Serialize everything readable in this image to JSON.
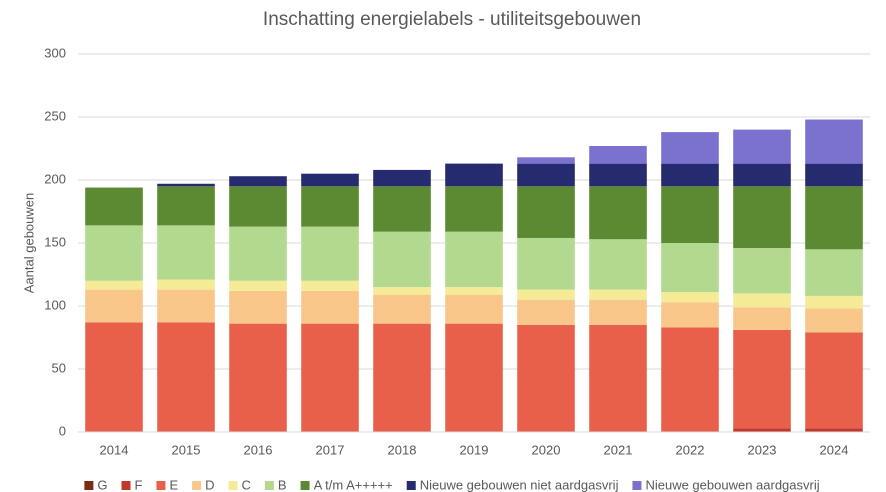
{
  "chart_data": {
    "type": "stacked_bar",
    "title": "Inschatting energielabels - utiliteitsgebouwen",
    "y_label": "Aantal gebouwen",
    "categories": [
      "2014",
      "2015",
      "2016",
      "2017",
      "2018",
      "2019",
      "2020",
      "2021",
      "2022",
      "2023",
      "2024"
    ],
    "series": [
      {
        "name": "G",
        "color": "#7b2a16",
        "values": [
          0,
          0,
          0,
          0,
          0,
          0,
          0,
          0,
          0,
          0,
          0
        ]
      },
      {
        "name": "F",
        "color": "#c0392b",
        "values": [
          0,
          0,
          0,
          0,
          0,
          0,
          0,
          0,
          0,
          3,
          3
        ]
      },
      {
        "name": "E",
        "color": "#e8604a",
        "values": [
          87,
          87,
          86,
          86,
          86,
          86,
          85,
          85,
          83,
          78,
          76
        ]
      },
      {
        "name": "D",
        "color": "#f9c78a",
        "values": [
          26,
          26,
          26,
          26,
          23,
          23,
          20,
          20,
          20,
          18,
          19
        ]
      },
      {
        "name": "C",
        "color": "#f5eb97",
        "values": [
          7,
          8,
          8,
          8,
          6,
          6,
          8,
          8,
          8,
          11,
          10
        ]
      },
      {
        "name": "B",
        "color": "#b3d98e",
        "values": [
          44,
          43,
          43,
          43,
          44,
          44,
          41,
          40,
          39,
          36,
          37
        ]
      },
      {
        "name": "A t/m A+++++",
        "color": "#5b8a32",
        "values": [
          30,
          31,
          32,
          32,
          36,
          36,
          41,
          42,
          45,
          49,
          50
        ]
      },
      {
        "name": "Nieuwe gebouwen niet aardgasvrij",
        "color": "#262a6e",
        "values": [
          0,
          2,
          8,
          10,
          13,
          18,
          18,
          18,
          18,
          18,
          18
        ]
      },
      {
        "name": "Nieuwe gebouwen aardgasvrij",
        "color": "#7b72cf",
        "values": [
          0,
          0,
          0,
          0,
          0,
          0,
          5,
          14,
          25,
          27,
          35
        ]
      }
    ],
    "ylim": [
      0,
      300
    ],
    "yticks": [
      0,
      50,
      100,
      150,
      200,
      250,
      300
    ],
    "grid": true,
    "legend": "bottom"
  }
}
